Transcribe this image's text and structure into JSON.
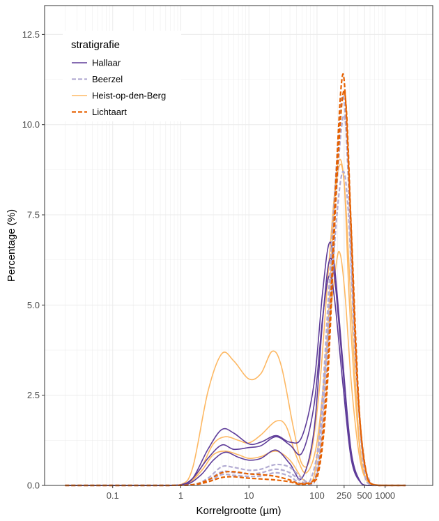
{
  "chart_data": {
    "type": "line",
    "xlabel": "Korrelgrootte (µm)",
    "ylabel": "Percentage (%)",
    "x_scale": "log",
    "xlim": [
      0.01,
      5000
    ],
    "ylim": [
      0,
      13.3
    ],
    "x_ticks": [
      {
        "value": 0.1,
        "label": "0.1"
      },
      {
        "value": 1,
        "label": "1"
      },
      {
        "value": 10,
        "label": "10"
      },
      {
        "value": 100,
        "label": "100"
      },
      {
        "value": 250,
        "label": "250"
      },
      {
        "value": 500,
        "label": "500"
      },
      {
        "value": 1000,
        "label": "1000"
      }
    ],
    "y_ticks": [
      {
        "value": 0,
        "label": "0.0"
      },
      {
        "value": 2.5,
        "label": "2.5"
      },
      {
        "value": 5,
        "label": "5.0"
      },
      {
        "value": 7.5,
        "label": "7.5"
      },
      {
        "value": 10,
        "label": "10.0"
      },
      {
        "value": 12.5,
        "label": "12.5"
      }
    ],
    "grid": true,
    "legend": {
      "title": "stratigrafie",
      "position": "top-left",
      "entries": [
        {
          "label": "Hallaar",
          "color": "#5e3c99",
          "dash": "solid"
        },
        {
          "label": "Beerzel",
          "color": "#b2abd2",
          "dash": "dashed"
        },
        {
          "label": "Heist-op-den-Berg",
          "color": "#fdb863",
          "dash": "solid"
        },
        {
          "label": "Lichtaart",
          "color": "#e66101",
          "dash": "dashed"
        }
      ]
    },
    "series": [
      {
        "group": "Heist-op-den-Berg",
        "points": [
          [
            0.02,
            0
          ],
          [
            0.5,
            0
          ],
          [
            1,
            0.02
          ],
          [
            1.5,
            0.5
          ],
          [
            2.5,
            2.6
          ],
          [
            4,
            3.65
          ],
          [
            6,
            3.45
          ],
          [
            10,
            2.95
          ],
          [
            15,
            3.1
          ],
          [
            22,
            3.72
          ],
          [
            30,
            3.3
          ],
          [
            45,
            1.6
          ],
          [
            60,
            0.6
          ],
          [
            80,
            0.8
          ],
          [
            110,
            2.8
          ],
          [
            150,
            6.2
          ],
          [
            200,
            8.85
          ],
          [
            250,
            8.4
          ],
          [
            300,
            5
          ],
          [
            400,
            1.5
          ],
          [
            500,
            0.3
          ],
          [
            700,
            0.02
          ],
          [
            2000,
            0
          ]
        ]
      },
      {
        "group": "Heist-op-den-Berg",
        "points": [
          [
            0.02,
            0
          ],
          [
            0.6,
            0
          ],
          [
            1.2,
            0.02
          ],
          [
            2,
            0.5
          ],
          [
            3,
            1.15
          ],
          [
            4.5,
            1.35
          ],
          [
            7,
            1.25
          ],
          [
            10,
            1.18
          ],
          [
            15,
            1.4
          ],
          [
            25,
            1.78
          ],
          [
            35,
            1.65
          ],
          [
            50,
            0.8
          ],
          [
            70,
            0.35
          ],
          [
            100,
            1.2
          ],
          [
            140,
            3.8
          ],
          [
            190,
            6.1
          ],
          [
            220,
            6.4
          ],
          [
            260,
            5.2
          ],
          [
            320,
            2.8
          ],
          [
            420,
            0.8
          ],
          [
            550,
            0.1
          ],
          [
            800,
            0
          ],
          [
            2000,
            0
          ]
        ]
      },
      {
        "group": "Heist-op-den-Berg",
        "points": [
          [
            0.02,
            0
          ],
          [
            0.6,
            0
          ],
          [
            1.2,
            0.02
          ],
          [
            2,
            0.4
          ],
          [
            3,
            0.85
          ],
          [
            4.5,
            0.95
          ],
          [
            7,
            0.85
          ],
          [
            10,
            0.75
          ],
          [
            15,
            0.8
          ],
          [
            25,
            0.95
          ],
          [
            40,
            0.7
          ],
          [
            60,
            0.2
          ],
          [
            80,
            0.05
          ],
          [
            100,
            0.8
          ],
          [
            140,
            4
          ],
          [
            180,
            7.8
          ],
          [
            220,
            8.9
          ],
          [
            260,
            8
          ],
          [
            320,
            4.8
          ],
          [
            420,
            1.2
          ],
          [
            550,
            0.1
          ],
          [
            800,
            0
          ],
          [
            2000,
            0
          ]
        ]
      },
      {
        "group": "Hallaar",
        "points": [
          [
            0.02,
            0
          ],
          [
            0.5,
            0
          ],
          [
            1,
            0.02
          ],
          [
            1.5,
            0.2
          ],
          [
            2.5,
            1.0
          ],
          [
            4,
            1.55
          ],
          [
            6,
            1.45
          ],
          [
            10,
            1.15
          ],
          [
            15,
            1.2
          ],
          [
            25,
            1.38
          ],
          [
            40,
            1.2
          ],
          [
            60,
            1.35
          ],
          [
            90,
            2.8
          ],
          [
            120,
            5.3
          ],
          [
            150,
            6.7
          ],
          [
            180,
            6.1
          ],
          [
            240,
            3.4
          ],
          [
            320,
            0.9
          ],
          [
            450,
            0.05
          ],
          [
            600,
            0
          ],
          [
            2000,
            0
          ]
        ]
      },
      {
        "group": "Hallaar",
        "points": [
          [
            0.02,
            0
          ],
          [
            0.5,
            0
          ],
          [
            1,
            0.02
          ],
          [
            1.5,
            0.2
          ],
          [
            2.5,
            0.75
          ],
          [
            4,
            1.12
          ],
          [
            6,
            1.0
          ],
          [
            10,
            1.05
          ],
          [
            15,
            1.1
          ],
          [
            25,
            1.35
          ],
          [
            40,
            1.12
          ],
          [
            60,
            0.9
          ],
          [
            90,
            2.2
          ],
          [
            120,
            4.6
          ],
          [
            150,
            5.8
          ],
          [
            180,
            5.2
          ],
          [
            240,
            2.8
          ],
          [
            320,
            0.7
          ],
          [
            450,
            0.05
          ],
          [
            600,
            0
          ],
          [
            2000,
            0
          ]
        ]
      },
      {
        "group": "Hallaar",
        "points": [
          [
            0.02,
            0
          ],
          [
            0.6,
            0
          ],
          [
            1.2,
            0.02
          ],
          [
            2,
            0.3
          ],
          [
            3,
            0.7
          ],
          [
            4.5,
            0.92
          ],
          [
            7,
            0.78
          ],
          [
            10,
            0.7
          ],
          [
            15,
            0.75
          ],
          [
            25,
            0.98
          ],
          [
            40,
            0.6
          ],
          [
            60,
            0.2
          ],
          [
            90,
            1.5
          ],
          [
            120,
            4.5
          ],
          [
            150,
            6.2
          ],
          [
            180,
            5.8
          ],
          [
            240,
            3.2
          ],
          [
            320,
            0.8
          ],
          [
            450,
            0.05
          ],
          [
            600,
            0
          ],
          [
            2000,
            0
          ]
        ]
      },
      {
        "group": "Beerzel",
        "points": [
          [
            0.02,
            0
          ],
          [
            0.6,
            0
          ],
          [
            1.5,
            0.02
          ],
          [
            2.5,
            0.2
          ],
          [
            4,
            0.52
          ],
          [
            6,
            0.5
          ],
          [
            10,
            0.42
          ],
          [
            15,
            0.45
          ],
          [
            25,
            0.58
          ],
          [
            40,
            0.5
          ],
          [
            60,
            0.2
          ],
          [
            80,
            0.15
          ],
          [
            110,
            1.5
          ],
          [
            150,
            5.5
          ],
          [
            200,
            9.3
          ],
          [
            240,
            10.8
          ],
          [
            280,
            9
          ],
          [
            340,
            5
          ],
          [
            450,
            1.2
          ],
          [
            600,
            0.1
          ],
          [
            800,
            0
          ],
          [
            2000,
            0
          ]
        ]
      },
      {
        "group": "Beerzel",
        "points": [
          [
            0.02,
            0
          ],
          [
            0.6,
            0
          ],
          [
            1.5,
            0.02
          ],
          [
            2.5,
            0.15
          ],
          [
            4,
            0.38
          ],
          [
            6,
            0.36
          ],
          [
            10,
            0.32
          ],
          [
            15,
            0.35
          ],
          [
            25,
            0.45
          ],
          [
            40,
            0.35
          ],
          [
            60,
            0.1
          ],
          [
            90,
            0.05
          ],
          [
            120,
            2
          ],
          [
            170,
            6.5
          ],
          [
            220,
            9.6
          ],
          [
            260,
            10.1
          ],
          [
            310,
            7.5
          ],
          [
            400,
            2.5
          ],
          [
            550,
            0.2
          ],
          [
            800,
            0
          ],
          [
            2000,
            0
          ]
        ]
      },
      {
        "group": "Beerzel",
        "points": [
          [
            0.02,
            0
          ],
          [
            0.6,
            0
          ],
          [
            1.5,
            0.02
          ],
          [
            2.5,
            0.1
          ],
          [
            4,
            0.3
          ],
          [
            6,
            0.28
          ],
          [
            10,
            0.25
          ],
          [
            15,
            0.26
          ],
          [
            25,
            0.35
          ],
          [
            40,
            0.25
          ],
          [
            60,
            0.05
          ],
          [
            100,
            0.3
          ],
          [
            140,
            3.5
          ],
          [
            190,
            7.2
          ],
          [
            240,
            8.7
          ],
          [
            290,
            7.5
          ],
          [
            360,
            3.8
          ],
          [
            480,
            0.6
          ],
          [
            650,
            0
          ],
          [
            2000,
            0
          ]
        ]
      },
      {
        "group": "Lichtaart",
        "points": [
          [
            0.02,
            0
          ],
          [
            0.6,
            0
          ],
          [
            1.5,
            0.02
          ],
          [
            2.5,
            0.15
          ],
          [
            4,
            0.35
          ],
          [
            6,
            0.38
          ],
          [
            10,
            0.32
          ],
          [
            15,
            0.3
          ],
          [
            25,
            0.25
          ],
          [
            40,
            0.15
          ],
          [
            60,
            0.05
          ],
          [
            100,
            0.3
          ],
          [
            140,
            3
          ],
          [
            190,
            8.5
          ],
          [
            230,
            11.2
          ],
          [
            260,
            10.8
          ],
          [
            310,
            7.5
          ],
          [
            400,
            2.5
          ],
          [
            550,
            0.2
          ],
          [
            800,
            0
          ],
          [
            2000,
            0
          ]
        ]
      },
      {
        "group": "Lichtaart",
        "points": [
          [
            0.02,
            0
          ],
          [
            0.6,
            0
          ],
          [
            1.5,
            0.02
          ],
          [
            2.5,
            0.1
          ],
          [
            4,
            0.22
          ],
          [
            6,
            0.24
          ],
          [
            10,
            0.2
          ],
          [
            15,
            0.18
          ],
          [
            25,
            0.15
          ],
          [
            40,
            0.1
          ],
          [
            60,
            0.03
          ],
          [
            100,
            0.2
          ],
          [
            140,
            2.6
          ],
          [
            190,
            8
          ],
          [
            235,
            10.7
          ],
          [
            270,
            10.4
          ],
          [
            320,
            7
          ],
          [
            420,
            2
          ],
          [
            560,
            0.15
          ],
          [
            800,
            0
          ],
          [
            2000,
            0
          ]
        ]
      }
    ]
  }
}
